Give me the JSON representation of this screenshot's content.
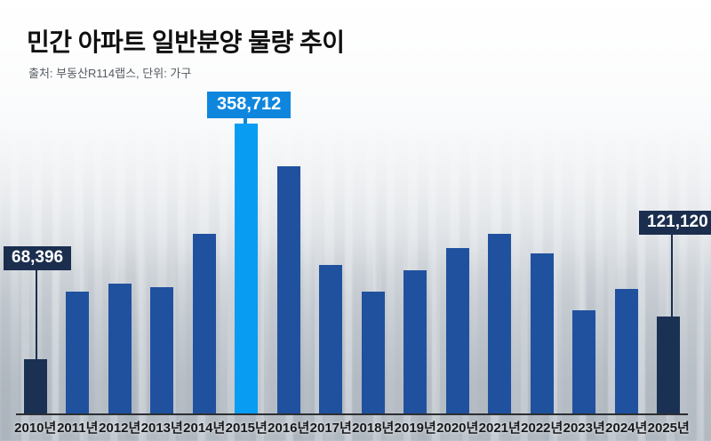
{
  "header": {
    "title": "민간 아파트 일반분양 물량 추이",
    "source_note": "출처: 부동산R114랩스, 단위: 가구"
  },
  "colors": {
    "bar_default": "#20519e",
    "bar_highlight": "#089df2",
    "bar_dark": "#1a3153",
    "callout_blue": "#0f86dd",
    "callout_dark": "#1b2e4e",
    "axis_line": "#2c2e31"
  },
  "chart_data": {
    "type": "bar",
    "title": "민간 아파트 일반분양 물량 추이",
    "source": "출처: 부동산R114랩스",
    "unit": "가구",
    "categories": [
      "2010년",
      "2011년",
      "2012년",
      "2013년",
      "2014년",
      "2015년",
      "2016년",
      "2017년",
      "2018년",
      "2019년",
      "2020년",
      "2021년",
      "2022년",
      "2023년",
      "2024년",
      "2025년"
    ],
    "values": [
      68396,
      151800,
      161700,
      157300,
      222200,
      358712,
      305800,
      184800,
      151800,
      178200,
      204600,
      222200,
      199100,
      128700,
      155100,
      121120
    ],
    "bar_styles": [
      "dark",
      "default",
      "default",
      "default",
      "default",
      "highlight",
      "default",
      "default",
      "default",
      "default",
      "default",
      "default",
      "default",
      "default",
      "default",
      "dark"
    ],
    "annotations": [
      {
        "category": "2010년",
        "value": 68396,
        "label": "68,396",
        "style": "dark"
      },
      {
        "category": "2015년",
        "value": 358712,
        "label": "358,712",
        "style": "blue"
      },
      {
        "category": "2025년",
        "value": 121120,
        "label": "121,120",
        "style": "dark"
      }
    ],
    "ylim": [
      0,
      380000
    ],
    "xlabel": "",
    "ylabel": "가구",
    "grid": false,
    "legend": false
  }
}
